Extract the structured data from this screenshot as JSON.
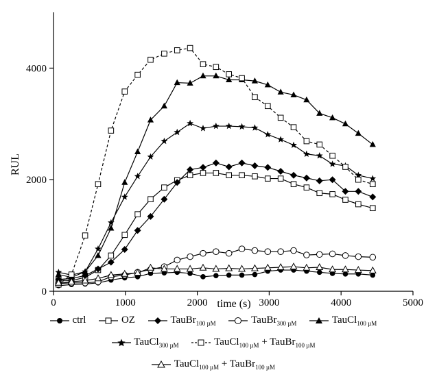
{
  "chart_data": {
    "type": "line",
    "title": "",
    "xlabel": "time (s)",
    "ylabel": "RUL",
    "xlim": [
      0,
      5000
    ],
    "ylim": [
      0,
      5000
    ],
    "xticks": [
      0,
      1000,
      2000,
      3000,
      4000,
      5000
    ],
    "yticks": [
      0,
      2000,
      4000
    ],
    "grid": false,
    "legend_position": "bottom",
    "series": [
      {
        "name": "ctrl",
        "name_main": "ctrl",
        "name_sub": "",
        "marker": "circle-filled",
        "dash": "solid",
        "x": [
          70,
          250,
          440,
          620,
          800,
          990,
          1170,
          1350,
          1540,
          1720,
          1900,
          2080,
          2260,
          2440,
          2620,
          2800,
          2980,
          3160,
          3340,
          3520,
          3700,
          3880,
          4060,
          4240,
          4440
        ],
        "y": [
          100,
          120,
          130,
          150,
          200,
          240,
          260,
          320,
          330,
          340,
          320,
          260,
          280,
          290,
          290,
          300,
          360,
          380,
          380,
          360,
          340,
          320,
          310,
          310,
          290
        ]
      },
      {
        "name": "OZ",
        "name_main": "OZ",
        "name_sub": "",
        "marker": "square-open",
        "dash": "solid",
        "x": [
          70,
          250,
          440,
          620,
          800,
          990,
          1170,
          1350,
          1540,
          1720,
          1900,
          2080,
          2260,
          2440,
          2620,
          2800,
          2980,
          3160,
          3340,
          3520,
          3700,
          3880,
          4060,
          4240,
          4440
        ],
        "y": [
          200,
          190,
          250,
          380,
          640,
          1010,
          1380,
          1650,
          1860,
          1990,
          2080,
          2120,
          2120,
          2080,
          2080,
          2060,
          2020,
          2020,
          1920,
          1860,
          1760,
          1740,
          1640,
          1560,
          1490
        ]
      },
      {
        "name": "TauBr100 µM",
        "name_main": "TauBr",
        "name_sub": "100 µM",
        "marker": "diamond-filled",
        "dash": "solid",
        "x": [
          70,
          250,
          440,
          620,
          800,
          990,
          1170,
          1350,
          1540,
          1720,
          1900,
          2080,
          2260,
          2440,
          2620,
          2800,
          2980,
          3160,
          3340,
          3520,
          3700,
          3880,
          4060,
          4240,
          4440
        ],
        "y": [
          210,
          230,
          280,
          400,
          520,
          750,
          1090,
          1340,
          1650,
          1950,
          2180,
          2220,
          2300,
          2230,
          2300,
          2250,
          2220,
          2150,
          2080,
          2030,
          1980,
          2000,
          1790,
          1790,
          1690
        ]
      },
      {
        "name": "TauBr300 µM",
        "name_main": "TauBr",
        "name_sub": "300 µM",
        "marker": "circle-open",
        "dash": "solid",
        "x": [
          70,
          250,
          440,
          620,
          800,
          990,
          1170,
          1350,
          1540,
          1720,
          1900,
          2080,
          2260,
          2440,
          2620,
          2800,
          2980,
          3160,
          3340,
          3520,
          3700,
          3880,
          4060,
          4240,
          4440
        ],
        "y": [
          140,
          150,
          150,
          170,
          260,
          290,
          340,
          390,
          440,
          560,
          620,
          680,
          710,
          680,
          760,
          730,
          710,
          710,
          730,
          650,
          660,
          670,
          640,
          620,
          610
        ]
      },
      {
        "name": "TauCl100 µM",
        "name_main": "TauCl",
        "name_sub": "100 µM",
        "marker": "triangle-filled",
        "dash": "solid",
        "x": [
          70,
          250,
          440,
          620,
          800,
          990,
          1170,
          1350,
          1540,
          1720,
          1900,
          2080,
          2260,
          2440,
          2620,
          2800,
          2980,
          3160,
          3340,
          3520,
          3700,
          3880,
          4060,
          4240,
          4440
        ],
        "y": [
          300,
          250,
          350,
          640,
          1130,
          1950,
          2500,
          3070,
          3320,
          3740,
          3730,
          3860,
          3860,
          3790,
          3790,
          3770,
          3700,
          3570,
          3520,
          3430,
          3190,
          3110,
          3000,
          2830,
          2630
        ]
      },
      {
        "name": "TauCl300 µM",
        "name_main": "TauCl",
        "name_sub": "300 µM",
        "marker": "star-filled",
        "dash": "solid",
        "x": [
          70,
          250,
          440,
          620,
          800,
          990,
          1170,
          1350,
          1540,
          1720,
          1900,
          2080,
          2260,
          2440,
          2620,
          2800,
          2980,
          3160,
          3340,
          3520,
          3700,
          3880,
          4060,
          4240,
          4440
        ],
        "y": [
          340,
          290,
          350,
          760,
          1230,
          1690,
          2060,
          2410,
          2690,
          2850,
          3010,
          2920,
          2960,
          2960,
          2950,
          2930,
          2810,
          2720,
          2620,
          2460,
          2430,
          2280,
          2250,
          2080,
          2020
        ]
      },
      {
        "name": "TauCl100 µM + TauBr100 µM",
        "name_main": "TauCl",
        "name_sub": "100 µM",
        "name_main2": " + TauBr",
        "name_sub2": "100 µM",
        "marker": "square-open",
        "dash": "dashed",
        "x": [
          70,
          250,
          440,
          620,
          800,
          990,
          1170,
          1350,
          1540,
          1720,
          1900,
          2080,
          2260,
          2440,
          2620,
          2800,
          2980,
          3160,
          3340,
          3520,
          3700,
          3880,
          4060,
          4240,
          4440
        ],
        "y": [
          120,
          300,
          1000,
          1920,
          2880,
          3580,
          3880,
          4150,
          4260,
          4320,
          4360,
          4070,
          4020,
          3890,
          3820,
          3480,
          3320,
          3110,
          2940,
          2690,
          2630,
          2430,
          2230,
          2000,
          1920
        ]
      },
      {
        "name": "TauCl100 µM + TauBr100 µM",
        "name_main": "TauCl",
        "name_sub": "100 µM",
        "name_main2": " + TauBr",
        "name_sub2": "100 µM",
        "marker": "triangle-open",
        "dash": "solid",
        "x": [
          70,
          250,
          440,
          620,
          800,
          990,
          1170,
          1350,
          1540,
          1720,
          1900,
          2080,
          2260,
          2440,
          2620,
          2800,
          2980,
          3160,
          3340,
          3520,
          3700,
          3880,
          4060,
          4240,
          4440
        ],
        "y": [
          150,
          170,
          190,
          230,
          290,
          310,
          330,
          420,
          400,
          400,
          400,
          420,
          400,
          410,
          400,
          410,
          420,
          430,
          440,
          420,
          430,
          390,
          390,
          380,
          370
        ]
      }
    ]
  }
}
